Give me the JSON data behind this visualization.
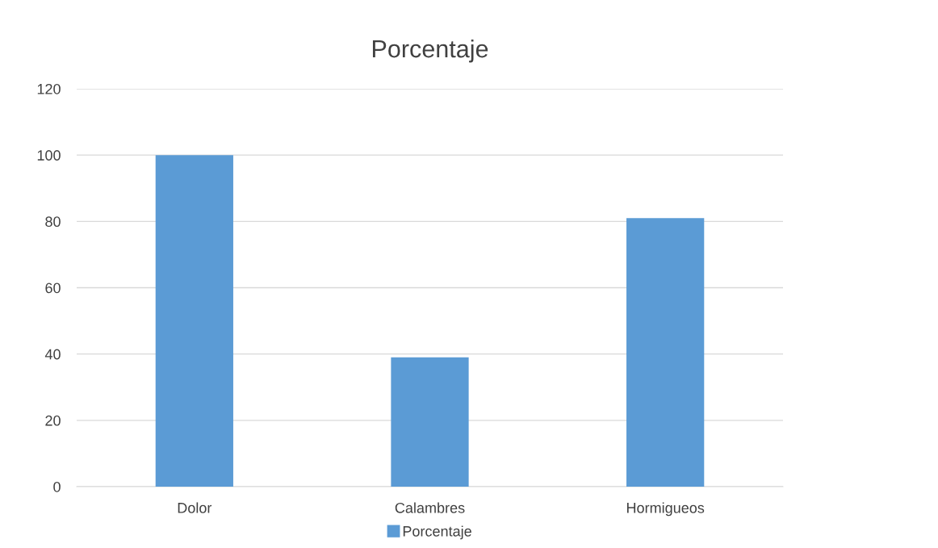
{
  "chart_data": {
    "type": "bar",
    "title": "Porcentaje",
    "categories": [
      "Dolor",
      "Calambres",
      "Hormigueos"
    ],
    "series": [
      {
        "name": "Porcentaje",
        "color": "#5b9bd5",
        "values": [
          100,
          39,
          81
        ]
      }
    ],
    "ylim": [
      0,
      120
    ],
    "yticks": [
      0,
      20,
      40,
      60,
      80,
      100,
      120
    ],
    "grid": "y",
    "legend": "bottom"
  }
}
